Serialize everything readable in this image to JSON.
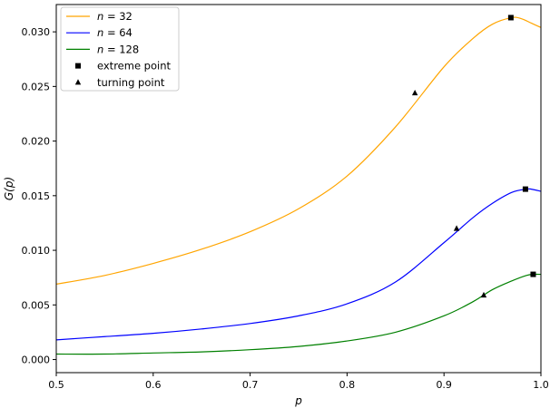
{
  "chart_data": {
    "type": "line",
    "xlabel": "p",
    "ylabel": "G(p)",
    "xlim": [
      0.5,
      1.0
    ],
    "ylim": [
      -0.0012,
      0.0325
    ],
    "xticks": [
      0.5,
      0.6,
      0.7,
      0.8,
      0.9,
      1.0
    ],
    "xtick_labels": [
      "0.5",
      "0.6",
      "0.7",
      "0.8",
      "0.9",
      "1.0"
    ],
    "yticks": [
      0.0,
      0.005,
      0.01,
      0.015,
      0.02,
      0.025,
      0.03
    ],
    "ytick_labels": [
      "0.000",
      "0.005",
      "0.010",
      "0.015",
      "0.020",
      "0.025",
      "0.030"
    ],
    "grid": false,
    "legend_position": "top-left",
    "series": [
      {
        "name": "n = 32",
        "legend_var": "n",
        "legend_value": "32",
        "color": "#ffa500",
        "x": [
          0.5,
          0.55,
          0.6,
          0.65,
          0.7,
          0.75,
          0.8,
          0.85,
          0.9,
          0.93,
          0.95,
          0.97,
          0.98,
          0.99,
          1.0
        ],
        "y": [
          0.0069,
          0.0077,
          0.0088,
          0.0101,
          0.0117,
          0.0138,
          0.0168,
          0.0213,
          0.0268,
          0.0294,
          0.0307,
          0.0313,
          0.0312,
          0.0308,
          0.0304
        ],
        "extreme_point": [
          0.969,
          0.0313
        ],
        "turning_point": [
          0.87,
          0.0244
        ]
      },
      {
        "name": "n = 64",
        "legend_var": "n",
        "legend_value": "64",
        "color": "#0000ff",
        "x": [
          0.5,
          0.55,
          0.6,
          0.65,
          0.7,
          0.75,
          0.8,
          0.85,
          0.9,
          0.93,
          0.95,
          0.97,
          0.985,
          0.99,
          1.0
        ],
        "y": [
          0.0018,
          0.0021,
          0.0024,
          0.0028,
          0.0033,
          0.004,
          0.0051,
          0.0071,
          0.0107,
          0.013,
          0.0143,
          0.0153,
          0.0156,
          0.0156,
          0.0154
        ],
        "extreme_point": [
          0.984,
          0.0156
        ],
        "turning_point": [
          0.913,
          0.012
        ]
      },
      {
        "name": "n = 128",
        "legend_var": "n",
        "legend_value": "128",
        "color": "#008000",
        "x": [
          0.5,
          0.55,
          0.6,
          0.65,
          0.7,
          0.75,
          0.8,
          0.85,
          0.9,
          0.93,
          0.95,
          0.97,
          0.985,
          0.993,
          1.0
        ],
        "y": [
          0.0005,
          0.0005,
          0.0006,
          0.0007,
          0.0009,
          0.0012,
          0.0017,
          0.0025,
          0.004,
          0.0053,
          0.0064,
          0.0072,
          0.0077,
          0.0078,
          0.0078
        ],
        "extreme_point": [
          0.992,
          0.0078
        ],
        "turning_point": [
          0.941,
          0.0059
        ]
      }
    ],
    "legend": [
      {
        "kind": "line",
        "series_index": 0
      },
      {
        "kind": "line",
        "series_index": 1
      },
      {
        "kind": "line",
        "series_index": 2
      },
      {
        "kind": "marker",
        "marker": "square",
        "label": "extreme point"
      },
      {
        "kind": "marker",
        "marker": "triangle",
        "label": "turning point"
      }
    ]
  }
}
